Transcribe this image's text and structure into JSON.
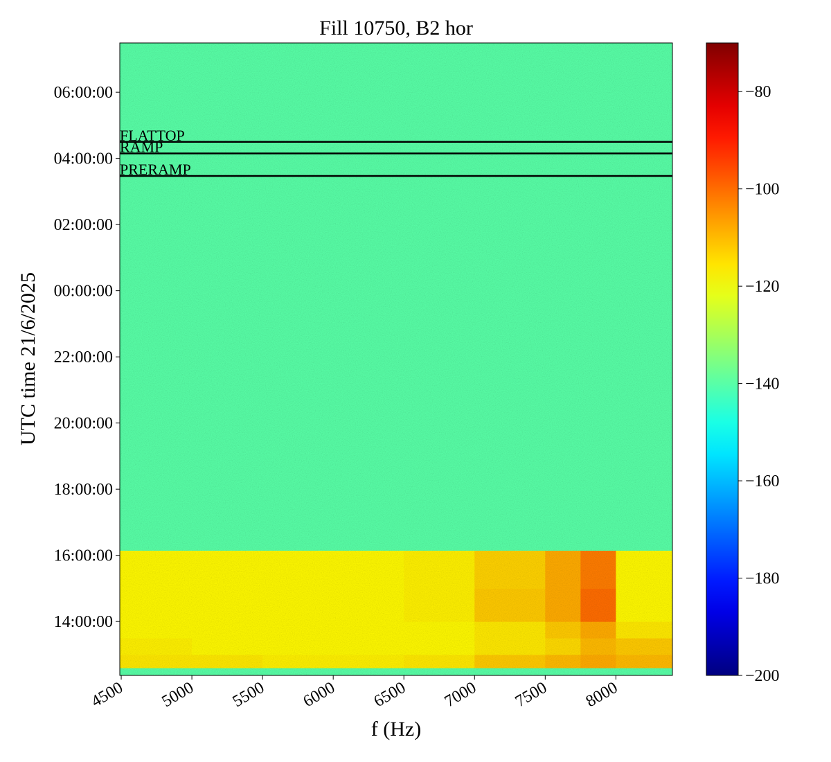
{
  "chart_data": {
    "type": "heatmap",
    "title": "Fill 10750, B2 hor",
    "x_label": "f (Hz)",
    "y_label": "UTC time 21/6/2025",
    "colormap": "jet",
    "x_edges": [
      4490,
      5000,
      5500,
      6000,
      6500,
      7000,
      7500,
      7750,
      8000,
      8400
    ],
    "y_edges": [
      12.37,
      12.6,
      13.0,
      13.5,
      14.0,
      15.0,
      16.15,
      31.49
    ],
    "z": [
      [
        -140,
        -140,
        -140,
        -140,
        -140,
        -140,
        -140,
        -140,
        -140
      ],
      [
        -116,
        -116,
        -117,
        -117,
        -116,
        -112,
        -110,
        -108,
        -110
      ],
      [
        -117,
        -118,
        -118,
        -118,
        -118,
        -116,
        -114,
        -110,
        -112
      ],
      [
        -118,
        -118,
        -118,
        -118,
        -118,
        -116,
        -112,
        -108,
        -116
      ],
      [
        -118,
        -118,
        -118,
        -118,
        -117,
        -112,
        -108,
        -100,
        -118
      ],
      [
        -118,
        -118,
        -118,
        -118,
        -117,
        -113,
        -108,
        -102,
        -118
      ],
      [
        -140,
        -140,
        -140,
        -140,
        -140,
        -140,
        -140,
        -140,
        -140
      ]
    ],
    "xlim": [
      4490,
      8400
    ],
    "ylim": [
      12.37,
      31.49
    ],
    "clim": [
      -200,
      -70
    ],
    "xticks": [
      4500,
      5000,
      5500,
      6000,
      6500,
      7000,
      7500,
      8000
    ],
    "yticks": [
      {
        "value": 14,
        "label": "14:00:00"
      },
      {
        "value": 16,
        "label": "16:00:00"
      },
      {
        "value": 18,
        "label": "18:00:00"
      },
      {
        "value": 20,
        "label": "20:00:00"
      },
      {
        "value": 22,
        "label": "22:00:00"
      },
      {
        "value": 24,
        "label": "00:00:00"
      },
      {
        "value": 26,
        "label": "02:00:00"
      },
      {
        "value": 28,
        "label": "04:00:00"
      },
      {
        "value": 30,
        "label": "06:00:00"
      }
    ],
    "cticks": [
      {
        "value": -200,
        "label": "−200"
      },
      {
        "value": -180,
        "label": "−180"
      },
      {
        "value": -160,
        "label": "−160"
      },
      {
        "value": -140,
        "label": "−140"
      },
      {
        "value": -120,
        "label": "−120"
      },
      {
        "value": -100,
        "label": "−100"
      },
      {
        "value": -80,
        "label": "−80"
      }
    ],
    "hlines": [
      {
        "y": 28.5,
        "label": "FLATTOP"
      },
      {
        "y": 28.15,
        "label": "RAMP"
      },
      {
        "y": 27.47,
        "label": "PRERAMP"
      }
    ],
    "hline_color": "#000000"
  }
}
